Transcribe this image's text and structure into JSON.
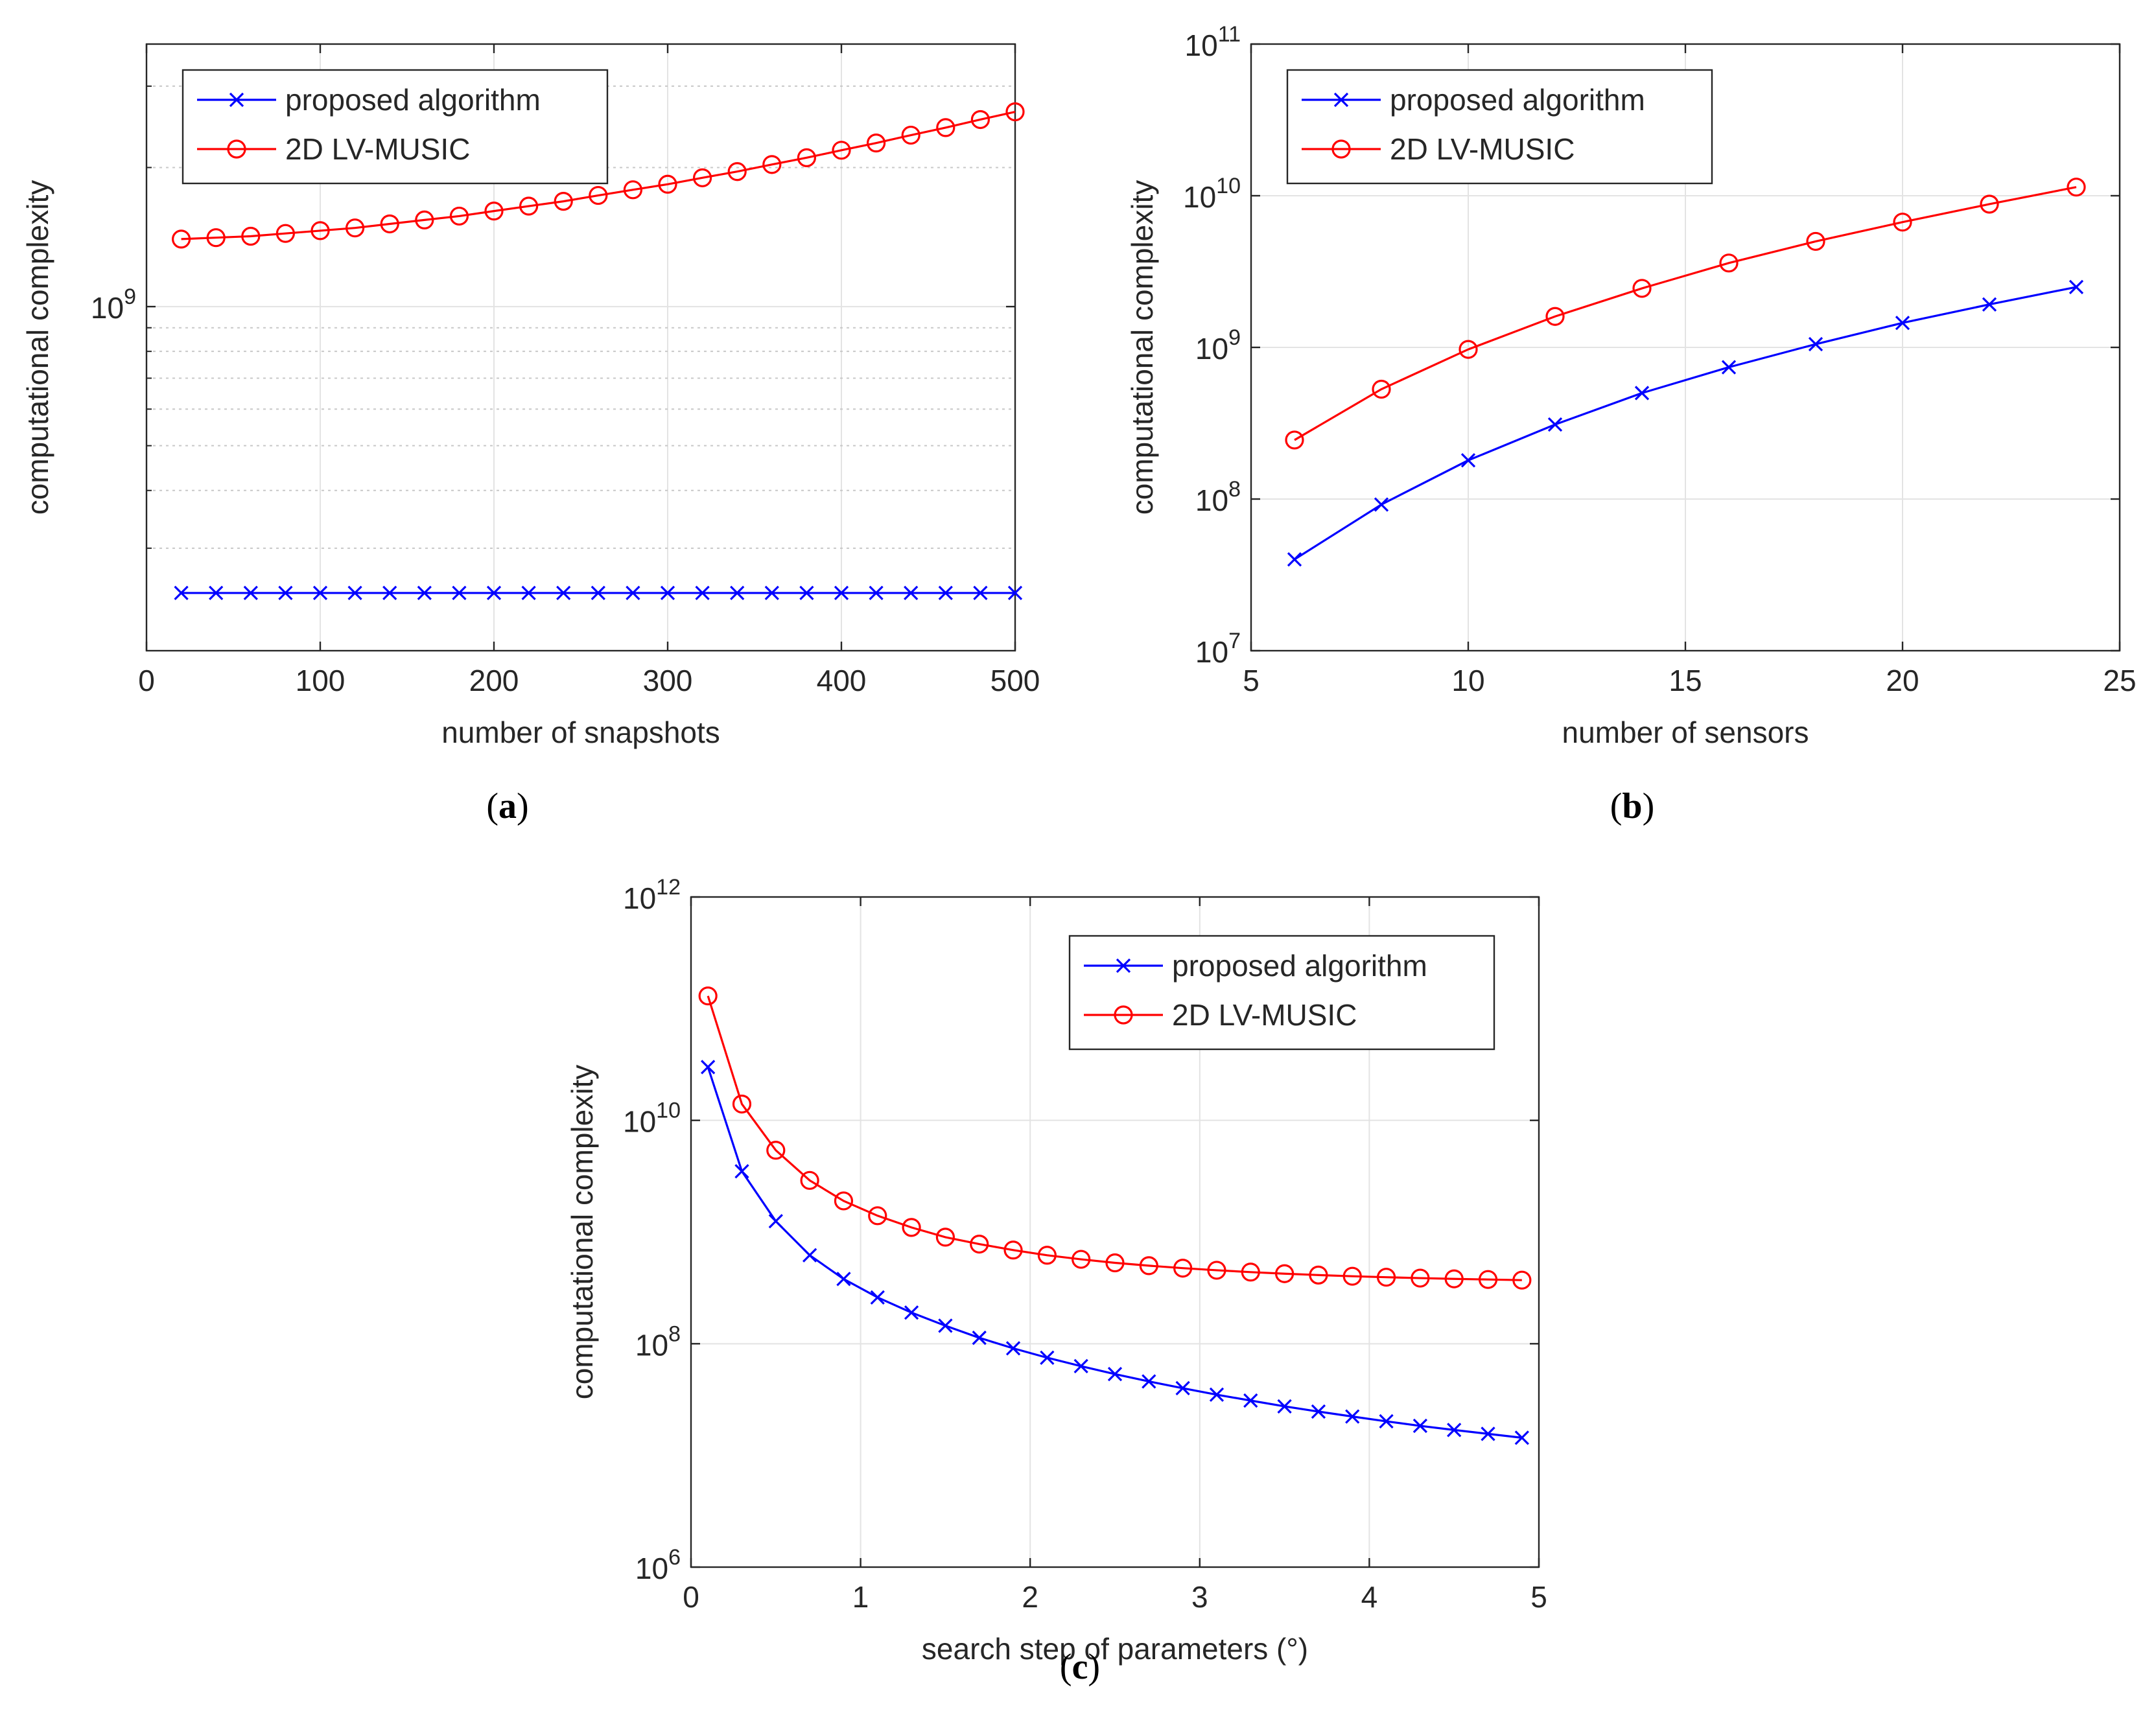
{
  "chart_data": [
    {
      "type": "line",
      "panel": "a",
      "caption": "(a)",
      "caption_letter": "a",
      "xlabel": "number of snapshots",
      "ylabel": "computational complexity",
      "xscale": "linear",
      "yscale": "log",
      "xlim": [
        0,
        500
      ],
      "ylim": [
        180000000,
        3700000000
      ],
      "xticks": [
        0,
        100,
        200,
        300,
        400,
        500
      ],
      "xtick_labels": [
        "0",
        "100",
        "200",
        "300",
        "400",
        "500"
      ],
      "yticks": [
        1000000000
      ],
      "ytick_labels": [
        {
          "base": "10",
          "exp": "9"
        }
      ],
      "minor_yticks": [
        300000000,
        400000000,
        500000000,
        600000000,
        700000000,
        800000000,
        900000000,
        2000000000,
        3000000000
      ],
      "legend": {
        "position": "top-left"
      },
      "x": [
        20,
        40,
        60,
        80,
        100,
        120,
        140,
        160,
        180,
        200,
        220,
        240,
        260,
        280,
        300,
        320,
        340,
        360,
        380,
        400,
        420,
        440,
        460,
        480,
        500
      ],
      "series": [
        {
          "name": "proposed algorithm",
          "color": "#0000ff",
          "marker": "x",
          "values": [
            240000000,
            240000000,
            240000000,
            240000000,
            240000000,
            240000000,
            240000000,
            240000000,
            240000000,
            240000000,
            240000000,
            240000000,
            240000000,
            240000000,
            240000000,
            240000000,
            240000000,
            240000000,
            240000000,
            240000000,
            240000000,
            240000000,
            240000000,
            240000000,
            240000000
          ]
        },
        {
          "name": "2D LV-MUSIC",
          "color": "#ff0000",
          "marker": "o",
          "values": [
            1400000000,
            1410000000,
            1420000000,
            1440000000,
            1460000000,
            1480000000,
            1510000000,
            1540000000,
            1570000000,
            1610000000,
            1650000000,
            1690000000,
            1740000000,
            1790000000,
            1840000000,
            1900000000,
            1960000000,
            2030000000,
            2100000000,
            2180000000,
            2260000000,
            2350000000,
            2440000000,
            2540000000,
            2640000000
          ]
        }
      ]
    },
    {
      "type": "line",
      "panel": "b",
      "caption": "(b)",
      "caption_letter": "b",
      "xlabel": "number of sensors",
      "ylabel": "computational complexity",
      "xscale": "linear",
      "yscale": "log",
      "xlim": [
        5,
        25
      ],
      "ylim": [
        10000000,
        100000000000
      ],
      "xticks": [
        5,
        10,
        15,
        20,
        25
      ],
      "xtick_labels": [
        "5",
        "10",
        "15",
        "20",
        "25"
      ],
      "yticks": [
        10000000,
        100000000,
        1000000000,
        10000000000,
        100000000000
      ],
      "ytick_labels": [
        {
          "base": "10",
          "exp": "7"
        },
        {
          "base": "10",
          "exp": "8"
        },
        {
          "base": "10",
          "exp": "9"
        },
        {
          "base": "10",
          "exp": "10"
        },
        {
          "base": "10",
          "exp": "11"
        }
      ],
      "legend": {
        "position": "top-left"
      },
      "x": [
        6,
        8,
        10,
        12,
        14,
        16,
        18,
        20,
        22,
        24
      ],
      "series": [
        {
          "name": "proposed algorithm",
          "color": "#0000ff",
          "marker": "x",
          "values": [
            40000000,
            92000000,
            180000000,
            310000000,
            500000000,
            740000000,
            1050000000,
            1450000000,
            1920000000,
            2500000000
          ]
        },
        {
          "name": "2D LV-MUSIC",
          "color": "#ff0000",
          "marker": "o",
          "values": [
            245000000,
            530000000,
            970000000,
            1600000000,
            2450000000,
            3600000000,
            5000000000,
            6700000000,
            8800000000,
            11400000000
          ]
        }
      ]
    },
    {
      "type": "line",
      "panel": "c",
      "caption": "(c)",
      "caption_letter": "c",
      "xlabel": "search step of parameters (°)",
      "ylabel": "computational complexity",
      "xscale": "linear",
      "yscale": "log",
      "xlim": [
        0,
        5
      ],
      "ylim": [
        1000000,
        1000000000000
      ],
      "xticks": [
        0,
        1,
        2,
        3,
        4,
        5
      ],
      "xtick_labels": [
        "0",
        "1",
        "2",
        "3",
        "4",
        "5"
      ],
      "yticks": [
        1000000,
        100000000,
        10000000000,
        1000000000000
      ],
      "ytick_labels": [
        {
          "base": "10",
          "exp": "6"
        },
        {
          "base": "10",
          "exp": "8"
        },
        {
          "base": "10",
          "exp": "10"
        },
        {
          "base": "10",
          "exp": "12"
        }
      ],
      "legend": {
        "position": "top-right"
      },
      "x": [
        0.1,
        0.3,
        0.5,
        0.7,
        0.9,
        1.1,
        1.3,
        1.5,
        1.7,
        1.9,
        2.1,
        2.3,
        2.5,
        2.7,
        2.9,
        3.1,
        3.3,
        3.5,
        3.7,
        3.9,
        4.1,
        4.3,
        4.5,
        4.7,
        4.9
      ],
      "series": [
        {
          "name": "proposed algorithm",
          "color": "#0000ff",
          "marker": "x",
          "values": [
            30000000000,
            3500000000,
            1250000000,
            620000000,
            380000000,
            260000000,
            190000000,
            145000000,
            113000000,
            91000000,
            75000000,
            63000000,
            53500000,
            46000000,
            40000000,
            35000000,
            31000000,
            27500000,
            24700000,
            22300000,
            20200000,
            18400000,
            16900000,
            15600000,
            14400000
          ]
        },
        {
          "name": "2D LV-MUSIC",
          "color": "#ff0000",
          "marker": "o",
          "values": [
            130000000000,
            14000000000,
            5400000000,
            2900000000,
            1900000000,
            1400000000,
            1100000000,
            900000000,
            780000000,
            690000000,
            620000000,
            570000000,
            530000000,
            500000000,
            475000000,
            455000000,
            438000000,
            424000000,
            412000000,
            402000000,
            394000000,
            387000000,
            381000000,
            376000000,
            371000000
          ]
        }
      ]
    }
  ]
}
